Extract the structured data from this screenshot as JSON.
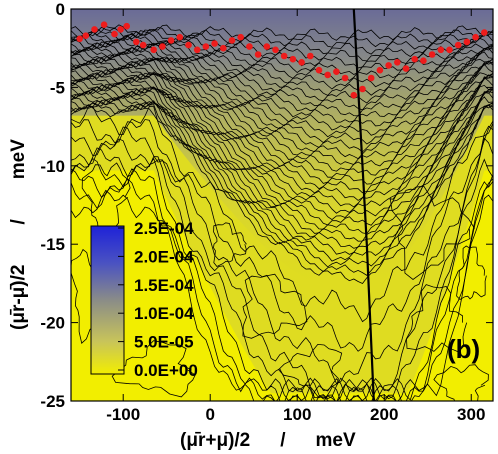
{
  "chart_data": {
    "type": "heatmap",
    "panel_label": "(b)",
    "xlabel": {
      "expr": "(μ̄r+μ̄)/2",
      "sep": "/",
      "unit": "meV"
    },
    "ylabel": {
      "expr": "(μ̄r-μ̄)/2",
      "sep": "/",
      "unit": "meV"
    },
    "xlim": [
      -160,
      325
    ],
    "ylim": [
      -25,
      0
    ],
    "xticks": [
      -100,
      0,
      100,
      200,
      300
    ],
    "xtick_labels": [
      "-100",
      "0",
      "100",
      "200",
      "300"
    ],
    "yticks": [
      0,
      -5,
      -10,
      -15,
      -20,
      -25
    ],
    "ytick_labels": [
      "0",
      "-5",
      "-10",
      "-15",
      "-20",
      "-25"
    ],
    "colorbar": {
      "ticks": [
        0.00025,
        0.0002,
        0.00015,
        0.0001,
        5e-05,
        0
      ],
      "labels": [
        "2.5E-04",
        "2.0E-04",
        "1.5E-04",
        "1.0E-04",
        "5.0E-05",
        "0.0E+00"
      ],
      "colors": {
        "high": "#1e22d8",
        "mid": "#8a8c78",
        "low": "#f2ee00"
      }
    },
    "contour_lines": "on",
    "boundary_line": {
      "color": "#000000",
      "points": [
        [
          165,
          0
        ],
        [
          170,
          -5
        ],
        [
          175,
          -10
        ],
        [
          180,
          -15
        ],
        [
          184,
          -20
        ],
        [
          188,
          -25
        ]
      ]
    },
    "series": [
      {
        "style": "red circles",
        "color": "#ee1c1c",
        "points": [
          [
            -150,
            -1.9
          ],
          [
            -143,
            -1.7
          ],
          [
            -133,
            -1.3
          ],
          [
            -122,
            -1.0
          ],
          [
            -110,
            -1.6
          ],
          [
            -103,
            -1.3
          ],
          [
            -96,
            -1.1
          ],
          [
            -85,
            -2.1
          ],
          [
            -77,
            -2.3
          ],
          [
            -65,
            -2.6
          ],
          [
            -55,
            -2.4
          ],
          [
            -45,
            -2.0
          ],
          [
            -35,
            -1.8
          ],
          [
            -25,
            -2.3
          ],
          [
            -15,
            -2.6
          ],
          [
            -5,
            -2.4
          ],
          [
            5,
            -2.2
          ],
          [
            15,
            -2.5
          ],
          [
            25,
            -2.0
          ],
          [
            35,
            -1.8
          ],
          [
            45,
            -2.4
          ],
          [
            55,
            -2.9
          ],
          [
            65,
            -2.4
          ],
          [
            75,
            -2.6
          ],
          [
            85,
            -3.0
          ],
          [
            95,
            -3.2
          ],
          [
            105,
            -3.4
          ],
          [
            115,
            -3.0
          ],
          [
            125,
            -3.9
          ],
          [
            135,
            -4.2
          ],
          [
            145,
            -4.0
          ],
          [
            155,
            -4.4
          ],
          [
            165,
            -5.5
          ],
          [
            175,
            -5.1
          ],
          [
            185,
            -4.4
          ],
          [
            195,
            -3.9
          ],
          [
            205,
            -3.6
          ],
          [
            215,
            -3.4
          ],
          [
            225,
            -3.8
          ],
          [
            235,
            -3.2
          ],
          [
            245,
            -3.3
          ],
          [
            255,
            -2.9
          ],
          [
            265,
            -2.6
          ],
          [
            275,
            -2.6
          ],
          [
            285,
            -2.3
          ],
          [
            295,
            -2.1
          ],
          [
            305,
            -1.8
          ],
          [
            315,
            -1.5
          ]
        ]
      }
    ]
  }
}
